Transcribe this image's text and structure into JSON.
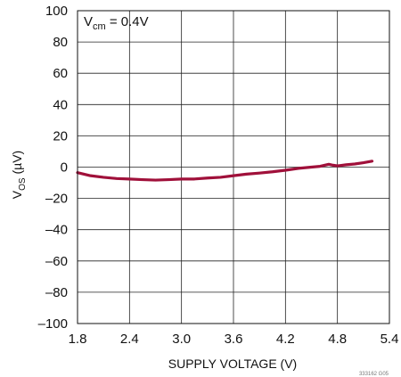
{
  "chart_data": {
    "type": "line",
    "annotation": {
      "main": "V",
      "sub": "cm",
      "rest": " = 0.4V"
    },
    "xlabel": "SUPPLY VOLTAGE  (V)",
    "ylabel": {
      "main": "V",
      "sub": "OS",
      "rest": " (µV)"
    },
    "xlim": [
      1.8,
      5.4
    ],
    "ylim": [
      -100,
      100
    ],
    "x_ticks": [
      {
        "value": 1.8,
        "label": "1.8"
      },
      {
        "value": 2.4,
        "label": "2.4"
      },
      {
        "value": 3.0,
        "label": "3.0"
      },
      {
        "value": 3.6,
        "label": "3.6"
      },
      {
        "value": 4.2,
        "label": "4.2"
      },
      {
        "value": 4.8,
        "label": "4.8"
      },
      {
        "value": 5.4,
        "label": "5.4"
      }
    ],
    "y_ticks": [
      {
        "value": 100,
        "label": "100"
      },
      {
        "value": 80,
        "label": "80"
      },
      {
        "value": 60,
        "label": "60"
      },
      {
        "value": 40,
        "label": "40"
      },
      {
        "value": 20,
        "label": "20"
      },
      {
        "value": 0,
        "label": "0"
      },
      {
        "value": -20,
        "label": "–20"
      },
      {
        "value": -40,
        "label": "–40"
      },
      {
        "value": -60,
        "label": "–60"
      },
      {
        "value": -80,
        "label": "–80"
      },
      {
        "value": -100,
        "label": "–100"
      }
    ],
    "grid": true,
    "series": [
      {
        "color": "#a0103a",
        "x": [
          1.8,
          1.95,
          2.1,
          2.25,
          2.4,
          2.55,
          2.7,
          2.85,
          3.0,
          3.15,
          3.3,
          3.45,
          3.6,
          3.75,
          3.9,
          4.05,
          4.2,
          4.35,
          4.5,
          4.6,
          4.7,
          4.75,
          4.8,
          4.9,
          5.0,
          5.1,
          5.2
        ],
        "y": [
          -3.5,
          -5.5,
          -6.5,
          -7.3,
          -7.6,
          -8.0,
          -8.3,
          -8.0,
          -7.6,
          -7.6,
          -7.0,
          -6.5,
          -5.5,
          -4.5,
          -3.8,
          -3.0,
          -2.0,
          -0.8,
          0.0,
          0.5,
          1.8,
          1.2,
          0.8,
          1.5,
          2.0,
          2.8,
          3.8
        ]
      }
    ],
    "footnote": "333162 G05"
  }
}
